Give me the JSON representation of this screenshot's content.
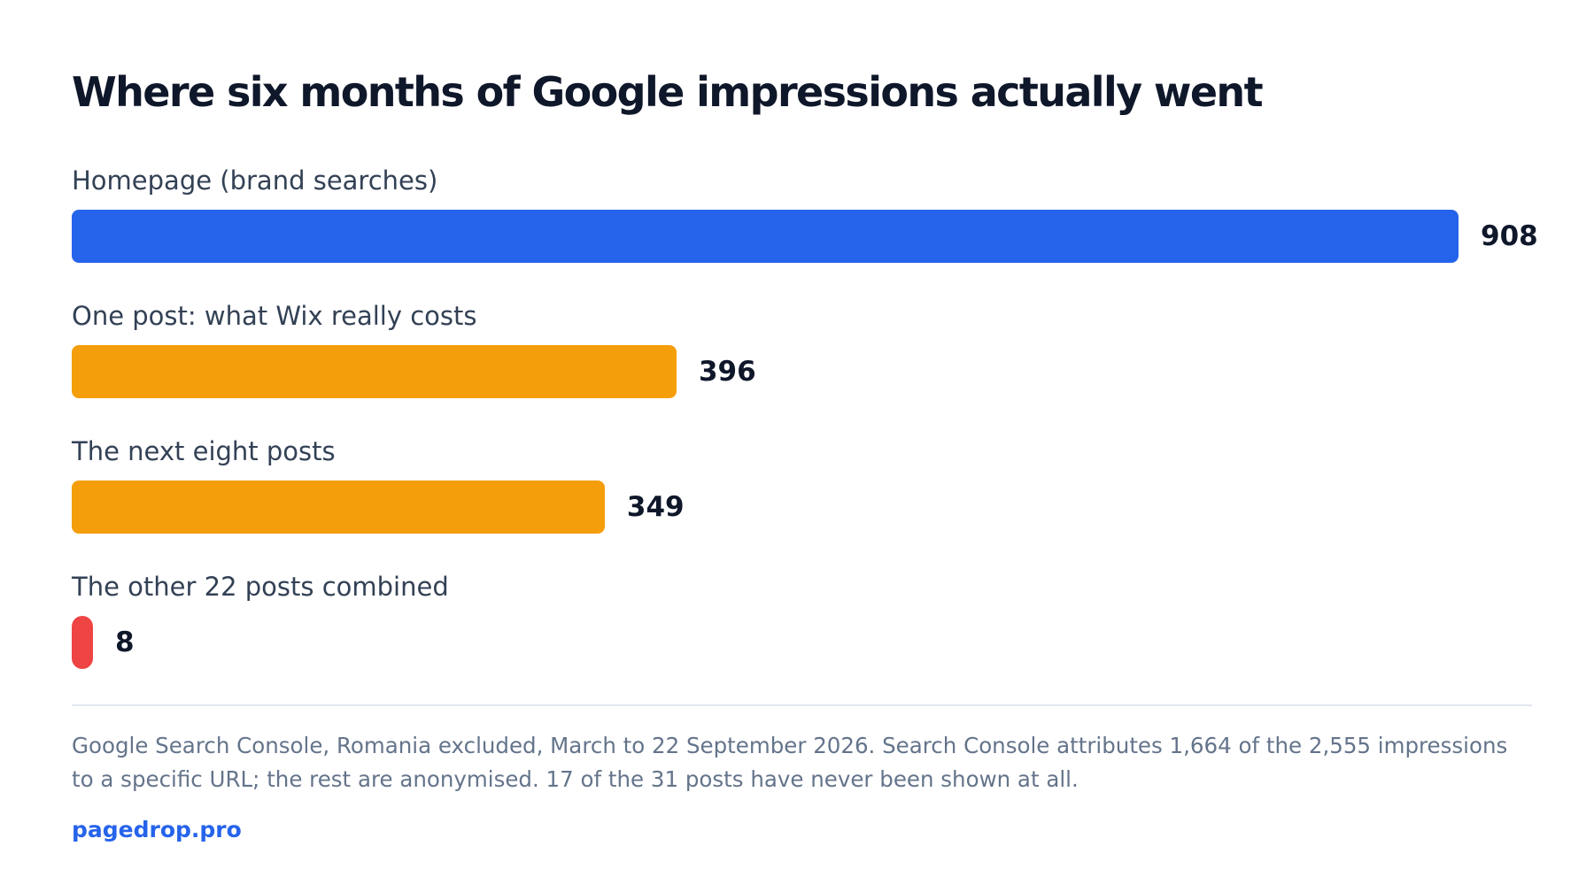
{
  "chart_data": {
    "type": "bar",
    "orientation": "horizontal",
    "title": "Where six months of Google impressions actually went",
    "categories": [
      "Homepage (brand searches)",
      "One post: what Wix really costs",
      "The next eight posts",
      "The other 22 posts combined"
    ],
    "values": [
      908,
      396,
      349,
      8
    ],
    "value_labels": [
      "908",
      "396",
      "349",
      "8"
    ],
    "colors": [
      "#2563eb",
      "#f59e0b",
      "#f59e0b",
      "#ef4444"
    ],
    "xlim": [
      0,
      908
    ],
    "grid": false,
    "legend": "none"
  },
  "footer": {
    "note": "Google Search Console, Romania excluded, March to 22 September 2026. Search Console attributes 1,664 of the 2,555 impressions to a specific URL; the rest are anonymised. 17 of the 31 posts have never been shown at all.",
    "source": "pagedrop.pro"
  }
}
